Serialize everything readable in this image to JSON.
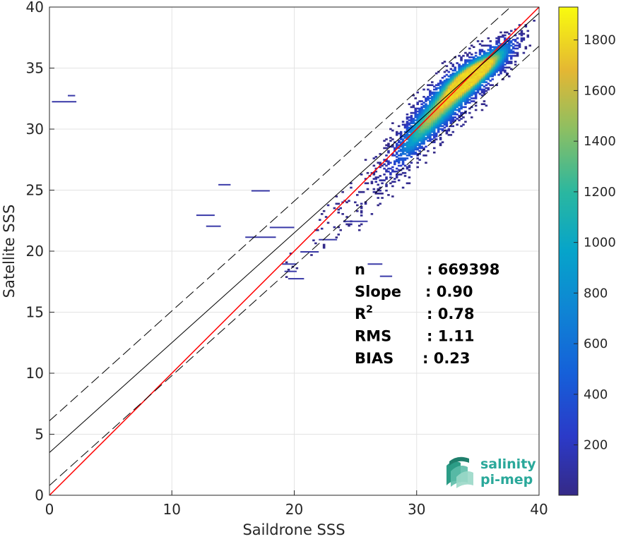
{
  "chart_data": {
    "type": "heatmap",
    "title": "",
    "xlabel": "Saildrone SSS",
    "ylabel": "Satellite SSS",
    "xlim": [
      0,
      40
    ],
    "ylim": [
      0,
      40
    ],
    "x_ticks": [
      0,
      10,
      20,
      30,
      40
    ],
    "y_ticks": [
      0,
      5,
      10,
      15,
      20,
      25,
      30,
      35,
      40
    ],
    "grid": true,
    "colorbar": {
      "colormap": "parula",
      "range": [
        1,
        1930
      ],
      "ticks": [
        200,
        400,
        600,
        800,
        1000,
        1200,
        1400,
        1600,
        1800
      ]
    },
    "density_clusters": [
      {
        "x": 34.5,
        "y": 34.5,
        "sx": 1.4,
        "sy": 1.1,
        "weight": 1.0
      },
      {
        "x": 32.5,
        "y": 32.2,
        "sx": 1.6,
        "sy": 1.5,
        "weight": 0.7
      },
      {
        "x": 30.5,
        "y": 30.0,
        "sx": 1.2,
        "sy": 1.4,
        "weight": 0.45
      },
      {
        "x": 36.8,
        "y": 36.2,
        "sx": 1.0,
        "sy": 1.0,
        "weight": 0.4
      },
      {
        "x": 29.0,
        "y": 28.3,
        "sx": 1.0,
        "sy": 1.3,
        "weight": 0.25
      },
      {
        "x": 27.0,
        "y": 26.0,
        "sx": 1.5,
        "sy": 1.6,
        "weight": 0.08
      },
      {
        "x": 24.0,
        "y": 23.0,
        "sx": 2.2,
        "sy": 2.0,
        "weight": 0.03
      },
      {
        "x": 19.5,
        "y": 18.5,
        "sx": 1.0,
        "sy": 1.0,
        "weight": 0.02
      }
    ],
    "lines": [
      {
        "name": "identity",
        "x": [
          0,
          40
        ],
        "y": [
          0,
          40
        ],
        "color": "#ff0000",
        "style": "solid"
      },
      {
        "name": "fit",
        "x": [
          0,
          40
        ],
        "y": [
          3.5,
          39.5
        ],
        "color": "#000000",
        "style": "solid"
      },
      {
        "name": "fit-upper",
        "x": [
          0,
          40
        ],
        "y": [
          6.1,
          42.1
        ],
        "color": "#000000",
        "style": "dashed"
      },
      {
        "name": "fit-lower",
        "x": [
          0,
          40
        ],
        "y": [
          0.8,
          36.8
        ],
        "color": "#000000",
        "style": "dashed"
      }
    ],
    "stats": [
      {
        "label": "n",
        "value": ": 669398"
      },
      {
        "label": "Slope",
        "value": ": 0.90"
      },
      {
        "label": "R",
        "sup": "2",
        "value": ": 0.78"
      },
      {
        "label": "RMS",
        "value": ": 1.11"
      },
      {
        "label": "BIAS",
        "value": ": 0.23"
      }
    ]
  },
  "logo": {
    "line1": "salinity",
    "line2": "pi-mep",
    "color": "#2aa89a"
  }
}
